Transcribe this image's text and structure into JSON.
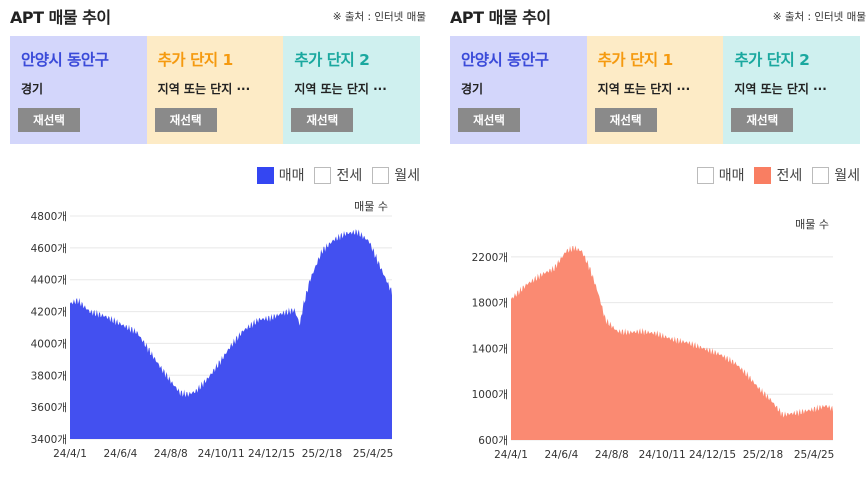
{
  "panels": [
    {
      "title": "APT 매물 추이",
      "source": "※ 출처 : 인터넷 매물",
      "cards": [
        {
          "name": "안양시 동안구",
          "sub": "경기",
          "button": "재선택"
        },
        {
          "name": "추가 단지 1",
          "sub": "지역 또는 단지 ···",
          "button": "재선택"
        },
        {
          "name": "추가 단지 2",
          "sub": "지역 또는 단지 ···",
          "button": "재선택"
        }
      ],
      "legend": [
        {
          "label": "매매",
          "checked": true
        },
        {
          "label": "전세",
          "checked": false
        },
        {
          "label": "월세",
          "checked": false
        }
      ]
    },
    {
      "title": "APT 매물 추이",
      "source": "※ 출처 : 인터넷 매물",
      "cards": [
        {
          "name": "안양시 동안구",
          "sub": "경기",
          "button": "재선택"
        },
        {
          "name": "추가 단지 1",
          "sub": "지역 또는 단지 ···",
          "button": "재선택"
        },
        {
          "name": "추가 단지 2",
          "sub": "지역 또는 단지 ···",
          "button": "재선택"
        }
      ],
      "legend": [
        {
          "label": "매매",
          "checked": false
        },
        {
          "label": "전세",
          "checked": true
        },
        {
          "label": "월세",
          "checked": false
        }
      ]
    }
  ],
  "chart_data": [
    {
      "type": "area",
      "series_label": "매매",
      "color": "#4350f0",
      "ylabel": "매물 수",
      "ylim": [
        3400,
        4800
      ],
      "y_ticks": [
        "3400개",
        "3600개",
        "3800개",
        "4000개",
        "4200개",
        "4400개",
        "4600개",
        "4800개"
      ],
      "y_tick_values": [
        3400,
        3600,
        3800,
        4000,
        4200,
        4400,
        4600,
        4800
      ],
      "x_ticks": [
        "24/4/1",
        "24/6/4",
        "24/8/8",
        "24/10/11",
        "24/12/15",
        "25/2/18",
        "25/4/25"
      ],
      "x_index": [
        0,
        64,
        128,
        192,
        256,
        320,
        385
      ],
      "x_count": 410,
      "x_points": [
        0,
        10,
        25,
        45,
        65,
        85,
        100,
        115,
        130,
        140,
        150,
        160,
        175,
        190,
        205,
        220,
        240,
        255,
        270,
        285,
        292,
        296,
        305,
        320,
        335,
        350,
        365,
        380,
        395,
        409
      ],
      "values": [
        4250,
        4270,
        4200,
        4170,
        4120,
        4070,
        3960,
        3850,
        3750,
        3690,
        3680,
        3700,
        3780,
        3880,
        3990,
        4080,
        4150,
        4160,
        4190,
        4210,
        4120,
        4230,
        4400,
        4580,
        4650,
        4690,
        4700,
        4640,
        4470,
        4320
      ]
    },
    {
      "type": "area",
      "series_label": "전세",
      "color": "#fa8a72",
      "ylabel": "매물 수",
      "ylim": [
        600,
        2400
      ],
      "y_ticks": [
        "600개",
        "1000개",
        "1400개",
        "1800개",
        "2200개"
      ],
      "y_tick_values": [
        600,
        1000,
        1400,
        1800,
        2200
      ],
      "x_ticks": [
        "24/4/1",
        "24/6/4",
        "24/8/8",
        "24/10/11",
        "24/12/15",
        "25/2/18",
        "25/4/25"
      ],
      "x_index": [
        0,
        64,
        128,
        192,
        256,
        320,
        385
      ],
      "x_count": 410,
      "x_points": [
        0,
        20,
        40,
        55,
        70,
        80,
        90,
        100,
        110,
        120,
        135,
        150,
        165,
        185,
        205,
        225,
        245,
        265,
        285,
        300,
        315,
        330,
        345,
        365,
        385,
        400,
        409
      ],
      "values": [
        1830,
        1960,
        2050,
        2100,
        2250,
        2280,
        2250,
        2100,
        1900,
        1650,
        1550,
        1540,
        1550,
        1530,
        1480,
        1450,
        1400,
        1350,
        1270,
        1170,
        1050,
        950,
        820,
        840,
        870,
        900,
        870
      ]
    }
  ]
}
